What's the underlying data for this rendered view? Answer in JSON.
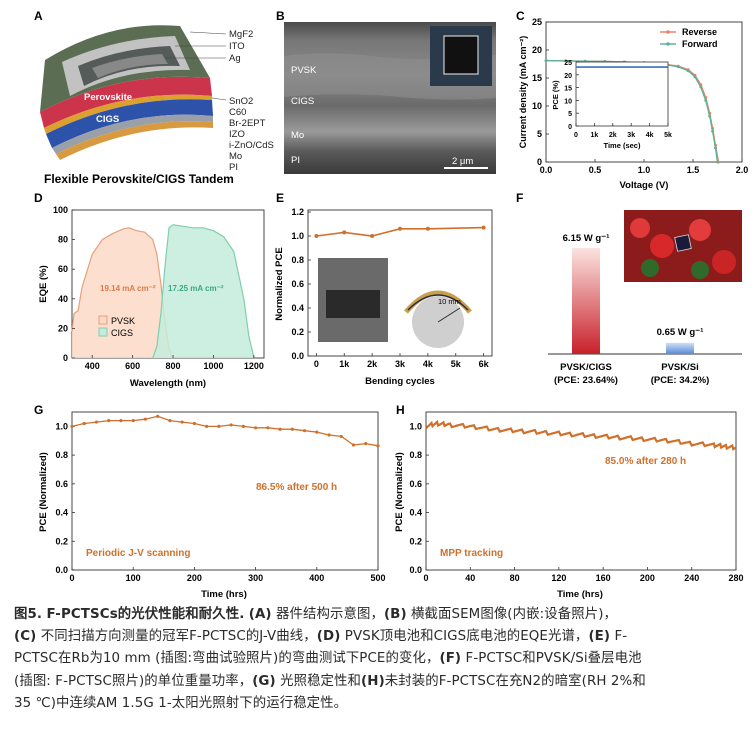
{
  "panels": {
    "A": {
      "letter": "A",
      "layers": [
        "MgF2",
        "ITO",
        "Ag",
        "SnO2",
        "C60",
        "Br-2EPT",
        "IZO",
        "i-ZnO/CdS",
        "Mo",
        "PI"
      ],
      "band_perovskite": "Perovskite",
      "band_cigs": "CIGS",
      "title": "Flexible Perovskite/CIGS Tandem",
      "colors": {
        "perovskite": "#c8324a",
        "cigs": "#2a4fa8",
        "substrate": "#5a6a4a",
        "frame": "#b8b8b8"
      }
    },
    "B": {
      "letter": "B",
      "labels": [
        "PVSK",
        "CIGS",
        "Mo",
        "PI"
      ],
      "scalebar": "2 μm"
    },
    "C": {
      "letter": "C",
      "xlabel": "Voltage (V)",
      "ylabel": "Current density (mA cm⁻²)",
      "xticks": [
        "0.0",
        "0.5",
        "1.0",
        "1.5",
        "2.0"
      ],
      "yticks": [
        "0",
        "5",
        "10",
        "15",
        "20",
        "25"
      ],
      "legend": [
        "Reverse",
        "Forward"
      ],
      "inset": {
        "xlabel": "Time (sec)",
        "ylabel": "PCE (%)",
        "xticks": [
          "0",
          "1k",
          "2k",
          "3k",
          "4k",
          "5k"
        ],
        "yticks": [
          "0",
          "5",
          "10",
          "15",
          "20",
          "25"
        ]
      }
    },
    "D": {
      "letter": "D",
      "xlabel": "Wavelength (nm)",
      "ylabel": "EQE (%)",
      "xticks": [
        "400",
        "600",
        "800",
        "1000",
        "1200"
      ],
      "yticks": [
        "0",
        "20",
        "40",
        "60",
        "80",
        "100"
      ],
      "ann_pvsk": "19.14 mA cm⁻²",
      "ann_cigs": "17.25 mA cm⁻²",
      "legend": [
        "PVSK",
        "CIGS"
      ]
    },
    "E": {
      "letter": "E",
      "xlabel": "Bending cycles",
      "ylabel": "Normalized PCE",
      "xticks": [
        "0",
        "1k",
        "2k",
        "3k",
        "4k",
        "5k",
        "6k"
      ],
      "yticks": [
        "0.0",
        "0.2",
        "0.4",
        "0.6",
        "0.8",
        "1.0",
        "1.2"
      ],
      "inset_label": "10 mm"
    },
    "F": {
      "letter": "F",
      "bars": [
        {
          "value_label": "6.15 W g⁻¹",
          "name": "PVSK/CIGS",
          "pce": "(PCE: 23.64%)"
        },
        {
          "value_label": "0.65 W g⁻¹",
          "name": "PVSK/Si",
          "pce": "(PCE: 34.2%)"
        }
      ]
    },
    "G": {
      "letter": "G",
      "xlabel": "Time (hrs)",
      "ylabel": "PCE (Normalized)",
      "xticks": [
        "0",
        "100",
        "200",
        "300",
        "400",
        "500"
      ],
      "yticks": [
        "0.0",
        "0.2",
        "0.4",
        "0.6",
        "0.8",
        "1.0"
      ],
      "annotation": "86.5% after 500 h",
      "label": "Periodic J-V scanning"
    },
    "H": {
      "letter": "H",
      "xlabel": "Time (hrs)",
      "ylabel": "PCE (Normalized)",
      "xticks": [
        "0",
        "40",
        "80",
        "120",
        "160",
        "200",
        "240",
        "280"
      ],
      "yticks": [
        "0.0",
        "0.2",
        "0.4",
        "0.6",
        "0.8",
        "1.0"
      ],
      "annotation": "85.0% after 280 h",
      "label": "MPP tracking"
    }
  },
  "chart_data": [
    {
      "type": "line",
      "panel": "C",
      "xlabel": "Voltage (V)",
      "ylabel": "Current density (mA cm⁻²)",
      "xlim": [
        0,
        2.0
      ],
      "ylim": [
        0,
        25
      ],
      "series": [
        {
          "name": "Reverse",
          "color": "#e8826a",
          "x": [
            0,
            0.2,
            0.4,
            0.6,
            0.8,
            1.0,
            1.2,
            1.35,
            1.45,
            1.52,
            1.58,
            1.63,
            1.67,
            1.7,
            1.73,
            1.76
          ],
          "y": [
            18.1,
            18.05,
            18.0,
            17.95,
            17.85,
            17.75,
            17.5,
            17.1,
            16.5,
            15.5,
            13.8,
            11.5,
            8.7,
            6.0,
            3.0,
            0
          ]
        },
        {
          "name": "Forward",
          "color": "#5fb394",
          "x": [
            0,
            0.2,
            0.4,
            0.6,
            0.8,
            1.0,
            1.2,
            1.35,
            1.45,
            1.52,
            1.58,
            1.63,
            1.67,
            1.7,
            1.73,
            1.75
          ],
          "y": [
            18.1,
            18.05,
            18.0,
            17.95,
            17.85,
            17.7,
            17.45,
            17.0,
            16.3,
            15.2,
            13.4,
            11.0,
            8.2,
            5.5,
            2.5,
            0
          ]
        }
      ],
      "inset": {
        "xlim": [
          0,
          5000
        ],
        "ylim": [
          0,
          25
        ],
        "x": [
          0,
          5000
        ],
        "y": [
          23.0,
          23.0
        ],
        "color": "#3b6fc4"
      }
    },
    {
      "type": "area",
      "panel": "D",
      "xlabel": "Wavelength (nm)",
      "ylabel": "EQE (%)",
      "xlim": [
        300,
        1250
      ],
      "ylim": [
        0,
        100
      ],
      "series": [
        {
          "name": "PVSK",
          "color": "#e8a07a",
          "x": [
            300,
            310,
            330,
            350,
            400,
            450,
            500,
            550,
            580,
            620,
            660,
            700,
            720,
            740,
            760,
            780,
            800
          ],
          "y": [
            18,
            30,
            32,
            48,
            70,
            80,
            84,
            87,
            88,
            86,
            85,
            80,
            70,
            50,
            25,
            6,
            0
          ]
        },
        {
          "name": "CIGS",
          "color": "#7fcfae",
          "x": [
            700,
            720,
            740,
            760,
            780,
            800,
            850,
            900,
            950,
            1000,
            1050,
            1100,
            1150,
            1175,
            1200
          ],
          "y": [
            0,
            8,
            30,
            62,
            88,
            90,
            89,
            88,
            88,
            86,
            82,
            72,
            40,
            15,
            0
          ]
        }
      ]
    },
    {
      "type": "line",
      "panel": "E",
      "xlabel": "Bending cycles",
      "ylabel": "Normalized PCE",
      "xlim": [
        0,
        6000
      ],
      "ylim": [
        0,
        1.2
      ],
      "series": [
        {
          "name": "",
          "color": "#d0702a",
          "x": [
            0,
            1000,
            2000,
            3000,
            4000,
            6000
          ],
          "y": [
            1.0,
            1.03,
            1.0,
            1.06,
            1.06,
            1.07
          ]
        }
      ]
    },
    {
      "type": "bar",
      "panel": "F",
      "categories": [
        "PVSK/CIGS",
        "PVSK/Si"
      ],
      "values": [
        6.15,
        0.65
      ],
      "ylabel": "",
      "colors": [
        "#c8202a",
        "#6a9ae0"
      ]
    },
    {
      "type": "line",
      "panel": "G",
      "xlabel": "Time (hrs)",
      "ylabel": "PCE (Normalized)",
      "xlim": [
        0,
        500
      ],
      "ylim": [
        0,
        1.1
      ],
      "series": [
        {
          "name": "",
          "color": "#d0702a",
          "x": [
            0,
            20,
            40,
            60,
            80,
            100,
            120,
            140,
            160,
            180,
            200,
            220,
            240,
            260,
            280,
            300,
            320,
            340,
            360,
            380,
            400,
            420,
            440,
            460,
            480,
            500
          ],
          "y": [
            1.0,
            1.02,
            1.03,
            1.04,
            1.04,
            1.04,
            1.05,
            1.07,
            1.04,
            1.03,
            1.02,
            1.0,
            1.0,
            1.01,
            1.0,
            0.99,
            0.99,
            0.98,
            0.98,
            0.97,
            0.96,
            0.94,
            0.93,
            0.87,
            0.88,
            0.865
          ]
        }
      ]
    },
    {
      "type": "line",
      "panel": "H",
      "xlabel": "Time (hrs)",
      "ylabel": "PCE (Normalized)",
      "xlim": [
        0,
        280
      ],
      "ylim": [
        0,
        1.1
      ],
      "series": [
        {
          "name": "",
          "color": "#d0702a",
          "x": [
            0,
            10,
            20,
            40,
            60,
            80,
            100,
            120,
            140,
            160,
            180,
            200,
            220,
            240,
            260,
            270,
            280
          ],
          "y": [
            1.0,
            1.02,
            1.01,
            1.0,
            0.98,
            0.97,
            0.96,
            0.95,
            0.94,
            0.93,
            0.92,
            0.91,
            0.9,
            0.88,
            0.87,
            0.86,
            0.85
          ]
        }
      ]
    }
  ],
  "caption": {
    "fignum": "图5.",
    "title": "F-PCTSCs的光伏性能和耐久性.",
    "lines": [
      [
        "(A)",
        " 器件结构示意图，",
        "(B)",
        " 横截面SEM图像(内嵌:设备照片)，"
      ],
      [
        "(C)",
        " 不同扫描方向测量的冠军F-PCTSC的J-V曲线，",
        "(D)",
        " PVSK顶电池和CIGS底电池的EQE光谱，",
        "(E)",
        " F-"
      ],
      [
        "",
        "PCTSC在Rb为10 mm (插图:弯曲试验照片)的弯曲测试下PCE的变化，",
        "(F)",
        " F-PCTSC和PVSK/Si叠层电池"
      ],
      [
        "",
        "(插图: F-PCTSC照片)的单位重量功率，",
        "(G)",
        " 光照稳定性和",
        "(H)",
        "未封装的F-PCTSC在充N2的暗室(RH 2%和"
      ],
      [
        "",
        "35 ℃)中连续AM 1.5G 1-太阳光照射下的运行稳定性。"
      ]
    ]
  }
}
